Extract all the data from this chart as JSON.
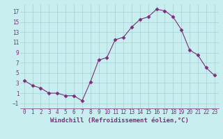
{
  "x": [
    0,
    1,
    2,
    3,
    4,
    5,
    6,
    7,
    8,
    9,
    10,
    11,
    12,
    13,
    14,
    15,
    16,
    17,
    18,
    19,
    20,
    21,
    22,
    23
  ],
  "y": [
    3.5,
    2.5,
    2.0,
    1.0,
    1.0,
    0.5,
    0.5,
    -0.5,
    3.2,
    7.5,
    8.0,
    11.5,
    12.0,
    14.0,
    15.5,
    16.0,
    17.5,
    17.2,
    16.0,
    13.5,
    9.5,
    8.5,
    6.0,
    4.5
  ],
  "xlabel": "Windchill (Refroidissement éolien,°C)",
  "ylim": [
    -2,
    18.5
  ],
  "xlim": [
    -0.5,
    23.5
  ],
  "yticks": [
    -1,
    1,
    3,
    5,
    7,
    9,
    11,
    13,
    15,
    17
  ],
  "xticks": [
    0,
    1,
    2,
    3,
    4,
    5,
    6,
    7,
    8,
    9,
    10,
    11,
    12,
    13,
    14,
    15,
    16,
    17,
    18,
    19,
    20,
    21,
    22,
    23
  ],
  "line_color": "#7b2f7a",
  "marker": "D",
  "marker_size": 2.5,
  "bg_color": "#c8eef0",
  "grid_color": "#aad4d8",
  "label_color": "#7b2f7a",
  "tick_fontsize": 5.5,
  "xlabel_fontsize": 6.5
}
